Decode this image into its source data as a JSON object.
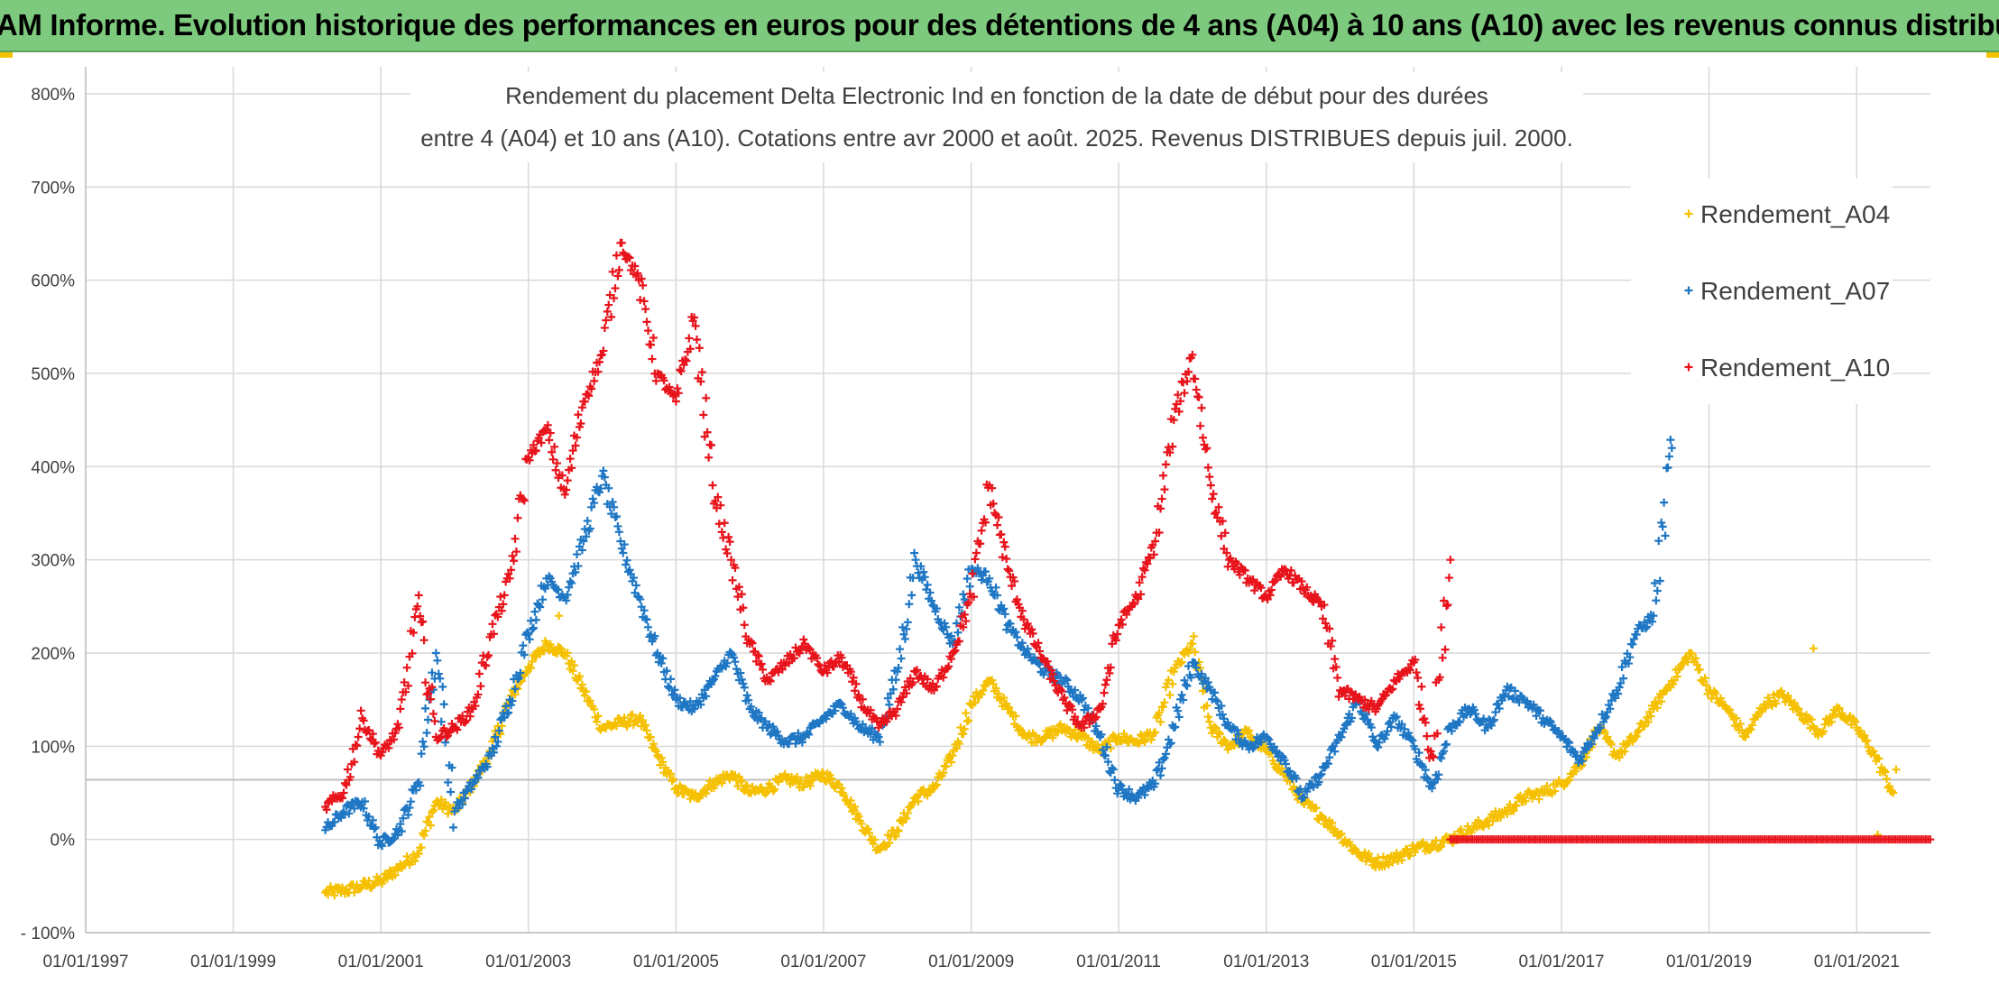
{
  "header": {
    "banner_title": "ADAM Informe. Evolution historique des performances en euros pour des détentions de 4 ans (A04) à 10 ans (A10) avec les revenus connus distribués"
  },
  "colors": {
    "banner_bg": "#7dc97d",
    "series_A04": "#f5c000",
    "series_A07": "#1f77c4",
    "series_A10": "#e8141c",
    "gridline": "#d9d9d9",
    "reference_line": "#bfbfbf"
  },
  "chart_data": {
    "type": "scatter",
    "marker": "plus",
    "title_lines": [
      "Rendement du placement Delta Electronic Ind  en fonction de la date de début pour des durées",
      "entre 4 (A04) et 10 ans (A10). Cotations entre avr 2000 et août. 2025. Revenus DISTRIBUES depuis juil. 2000."
    ],
    "xlabel": "",
    "ylabel": "",
    "x_axis_type": "date",
    "xlim": [
      "1997-01-01",
      "2022-01-01"
    ],
    "ylim": [
      -100,
      800
    ],
    "y_ticks": [
      -100,
      0,
      100,
      200,
      300,
      400,
      500,
      600,
      700,
      800
    ],
    "y_tick_labels": [
      "- 100%",
      "0%",
      "100%",
      "200%",
      "300%",
      "400%",
      "500%",
      "600%",
      "700%",
      "800%"
    ],
    "x_ticks": [
      "1997-01-01",
      "1999-01-01",
      "2001-01-01",
      "2003-01-01",
      "2005-01-01",
      "2007-01-01",
      "2009-01-01",
      "2011-01-01",
      "2013-01-01",
      "2015-01-01",
      "2017-01-01",
      "2019-01-01",
      "2021-01-01"
    ],
    "x_tick_labels": [
      "01/01/1997",
      "01/01/1999",
      "01/01/2001",
      "01/01/2003",
      "01/01/2005",
      "01/01/2007",
      "01/01/2009",
      "01/01/2011",
      "01/01/2013",
      "01/01/2015",
      "01/01/2017",
      "01/01/2019",
      "01/01/2021"
    ],
    "reference_line_y": 64,
    "grid": true,
    "legend_position": "top-right",
    "series": [
      {
        "name": "Rendement_A04",
        "x": [
          "2000-04-01",
          "2000-07-01",
          "2000-10-01",
          "2001-01-01",
          "2001-04-01",
          "2001-07-01",
          "2001-10-01",
          "2002-01-01",
          "2002-04-01",
          "2002-07-01",
          "2002-10-01",
          "2003-01-01",
          "2003-04-01",
          "2003-07-01",
          "2003-10-01",
          "2004-01-01",
          "2004-04-01",
          "2004-07-01",
          "2004-10-01",
          "2005-01-01",
          "2005-04-01",
          "2005-07-01",
          "2005-10-01",
          "2006-01-01",
          "2006-04-01",
          "2006-07-01",
          "2006-10-01",
          "2007-01-01",
          "2007-04-01",
          "2007-07-01",
          "2007-10-01",
          "2008-01-01",
          "2008-04-01",
          "2008-07-01",
          "2008-10-01",
          "2009-01-01",
          "2009-04-01",
          "2009-07-01",
          "2009-10-01",
          "2010-01-01",
          "2010-04-01",
          "2010-07-01",
          "2010-10-01",
          "2011-01-01",
          "2011-04-01",
          "2011-07-01",
          "2011-10-01",
          "2012-01-01",
          "2012-04-01",
          "2012-07-01",
          "2012-10-01",
          "2013-01-01",
          "2013-04-01",
          "2013-07-01",
          "2013-10-01",
          "2014-01-01",
          "2014-04-01",
          "2014-07-01",
          "2014-10-01",
          "2015-01-01",
          "2015-04-01",
          "2015-07-01",
          "2015-10-01",
          "2016-01-01",
          "2016-04-01",
          "2016-07-01",
          "2016-10-01",
          "2017-01-01",
          "2017-04-01",
          "2017-07-01",
          "2017-10-01",
          "2018-01-01",
          "2018-04-01",
          "2018-07-01",
          "2018-10-01",
          "2019-01-01",
          "2019-04-01",
          "2019-07-01",
          "2019-10-01",
          "2020-01-01",
          "2020-04-01",
          "2020-07-01",
          "2020-10-01",
          "2021-01-01",
          "2021-04-01",
          "2021-07-01"
        ],
        "values": [
          -57,
          -55,
          -50,
          -45,
          -30,
          -15,
          40,
          30,
          60,
          95,
          150,
          185,
          210,
          200,
          160,
          120,
          125,
          130,
          90,
          55,
          45,
          60,
          70,
          50,
          55,
          65,
          60,
          70,
          55,
          20,
          -10,
          10,
          45,
          55,
          90,
          145,
          170,
          140,
          110,
          110,
          120,
          110,
          95,
          110,
          105,
          115,
          180,
          210,
          120,
          100,
          115,
          95,
          70,
          40,
          25,
          5,
          -15,
          -25,
          -20,
          -10,
          -5,
          0,
          10,
          20,
          30,
          45,
          50,
          60,
          80,
          120,
          90,
          110,
          140,
          170,
          200,
          160,
          140,
          110,
          145,
          155,
          135,
          115,
          140,
          120,
          90,
          50
        ],
        "extra_points": [
          [
            "2021-04-15",
            5
          ],
          [
            "2021-07-15",
            75
          ],
          [
            "2020-06-01",
            205
          ],
          [
            "2003-06-01",
            240
          ]
        ]
      },
      {
        "name": "Rendement_A07",
        "x": [
          "2000-04-01",
          "2000-07-01",
          "2000-10-01",
          "2001-01-01",
          "2001-04-01",
          "2001-07-01",
          "2001-10-01",
          "2002-01-01",
          "2002-04-01",
          "2002-07-01",
          "2002-10-01",
          "2003-01-01",
          "2003-04-01",
          "2003-07-01",
          "2003-10-01",
          "2004-01-01",
          "2004-04-01",
          "2004-07-01",
          "2004-10-01",
          "2005-01-01",
          "2005-04-01",
          "2005-07-01",
          "2005-10-01",
          "2006-01-01",
          "2006-04-01",
          "2006-07-01",
          "2006-10-01",
          "2007-01-01",
          "2007-04-01",
          "2007-07-01",
          "2007-10-01",
          "2008-01-01",
          "2008-04-01",
          "2008-07-01",
          "2008-10-01",
          "2009-01-01",
          "2009-04-01",
          "2009-07-01",
          "2009-10-01",
          "2010-01-01",
          "2010-04-01",
          "2010-07-01",
          "2010-10-01",
          "2011-01-01",
          "2011-04-01",
          "2011-07-01",
          "2011-10-01",
          "2012-01-01",
          "2012-04-01",
          "2012-07-01",
          "2012-10-01",
          "2013-01-01",
          "2013-04-01",
          "2013-07-01",
          "2013-10-01",
          "2014-01-01",
          "2014-04-01",
          "2014-07-01",
          "2014-10-01",
          "2015-01-01",
          "2015-04-01",
          "2015-07-01",
          "2015-10-01",
          "2016-01-01",
          "2016-04-01",
          "2016-07-01",
          "2016-10-01",
          "2017-01-01",
          "2017-04-01",
          "2017-07-01",
          "2017-10-01",
          "2018-01-01",
          "2018-04-01",
          "2018-07-01"
        ],
        "values": [
          10,
          30,
          40,
          -5,
          10,
          60,
          200,
          30,
          60,
          90,
          150,
          220,
          280,
          260,
          320,
          390,
          320,
          260,
          200,
          150,
          140,
          170,
          200,
          140,
          120,
          105,
          110,
          130,
          145,
          120,
          110,
          180,
          300,
          250,
          210,
          290,
          280,
          230,
          200,
          180,
          170,
          150,
          110,
          55,
          45,
          60,
          120,
          190,
          160,
          120,
          100,
          110,
          85,
          45,
          70,
          110,
          150,
          100,
          130,
          100,
          55,
          120,
          140,
          120,
          160,
          150,
          130,
          110,
          85,
          120,
          160,
          220,
          240,
          420
        ]
      },
      {
        "name": "Rendement_A10",
        "x": [
          "2000-04-01",
          "2000-07-01",
          "2000-10-01",
          "2001-01-01",
          "2001-04-01",
          "2001-07-01",
          "2001-10-01",
          "2002-01-01",
          "2002-04-01",
          "2002-07-01",
          "2002-10-01",
          "2003-01-01",
          "2003-04-01",
          "2003-07-01",
          "2003-10-01",
          "2004-01-01",
          "2004-04-01",
          "2004-07-01",
          "2004-10-01",
          "2005-01-01",
          "2005-04-01",
          "2005-07-01",
          "2005-10-01",
          "2006-01-01",
          "2006-04-01",
          "2006-07-01",
          "2006-10-01",
          "2007-01-01",
          "2007-04-01",
          "2007-07-01",
          "2007-10-01",
          "2008-01-01",
          "2008-04-01",
          "2008-07-01",
          "2008-10-01",
          "2009-01-01",
          "2009-04-01",
          "2009-07-01",
          "2009-10-01",
          "2010-01-01",
          "2010-04-01",
          "2010-07-01",
          "2010-10-01",
          "2011-01-01",
          "2011-04-01",
          "2011-07-01",
          "2011-10-01",
          "2012-01-01",
          "2012-04-01",
          "2012-07-01",
          "2012-10-01",
          "2013-01-01",
          "2013-04-01",
          "2013-07-01",
          "2013-10-01",
          "2014-01-01",
          "2014-04-01",
          "2014-07-01",
          "2014-10-01",
          "2015-01-01",
          "2015-04-01",
          "2015-07-01"
        ],
        "values": [
          35,
          50,
          130,
          90,
          120,
          250,
          110,
          120,
          140,
          220,
          280,
          410,
          440,
          370,
          470,
          520,
          640,
          600,
          500,
          470,
          560,
          380,
          300,
          210,
          170,
          190,
          210,
          180,
          195,
          150,
          120,
          140,
          180,
          160,
          200,
          260,
          380,
          290,
          230,
          190,
          150,
          120,
          140,
          230,
          260,
          320,
          450,
          520,
          380,
          300,
          280,
          260,
          290,
          270,
          250,
          160,
          150,
          140,
          170,
          190,
          90,
          300
        ],
        "zero_from": "2015-07-01",
        "zero_to": "2021-12-31"
      }
    ]
  }
}
